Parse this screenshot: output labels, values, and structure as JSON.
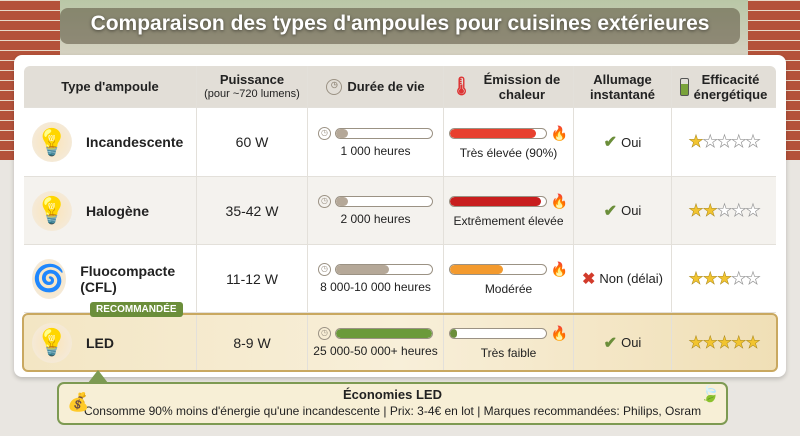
{
  "title": "Comparaison des types d'ampoules pour cuisines extérieures",
  "headers": {
    "type": "Type d'ampoule",
    "power": "Puissance",
    "power_sub": "(pour ~720 lumens)",
    "life": "Durée de vie",
    "heat": "Émission de chaleur",
    "instant": "Allumage instantané",
    "efficiency": "Efficacité énergétique"
  },
  "rows": [
    {
      "name": "Incandescente",
      "power": "60 W",
      "life": "1 000 heures",
      "life_pct": 5,
      "heat": "Très élevée (90%)",
      "heat_pct": 90,
      "heat_color": "#e8402e",
      "instant": "Oui",
      "instant_ok": true,
      "stars": 1
    },
    {
      "name": "Halogène",
      "power": "35-42 W",
      "life": "2 000 heures",
      "life_pct": 10,
      "heat": "Extrêmement élevée",
      "heat_pct": 95,
      "heat_color": "#c81e1e",
      "instant": "Oui",
      "instant_ok": true,
      "stars": 2
    },
    {
      "name": "Fluocompacte (CFL)",
      "power": "11-12 W",
      "life": "8 000-10 000 heures",
      "life_pct": 55,
      "heat": "Modérée",
      "heat_pct": 55,
      "heat_color": "#f39a2e",
      "instant": "Non (délai)",
      "instant_ok": false,
      "stars": 3
    },
    {
      "name": "LED",
      "power": "8-9 W",
      "life": "25 000-50 000+ heures",
      "life_pct": 100,
      "heat": "Très faible",
      "heat_pct": 5,
      "heat_color": "#6b8e3a",
      "instant": "Oui",
      "instant_ok": true,
      "stars": 5,
      "badge": "RECOMMANDÉE"
    }
  ],
  "life_color": "#b5a898",
  "led_life_color": "#6b9a3a",
  "callout": {
    "title": "Économies LED",
    "text": "Consomme 90% moins d'énergie qu'une incandescente | Prix: 3-4€ en lot | Marques recommandées: Philips, Osram"
  }
}
